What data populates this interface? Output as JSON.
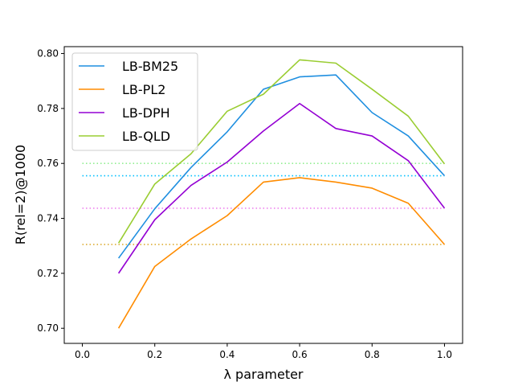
{
  "chart_data": {
    "type": "line",
    "xlabel": "λ parameter",
    "ylabel": "R(rel=2)@1000",
    "xlim": [
      -0.05,
      1.05
    ],
    "ylim": [
      0.6945,
      0.8025
    ],
    "xticks": [
      "0.0",
      "0.2",
      "0.4",
      "0.6",
      "0.8",
      "1.0"
    ],
    "yticks": [
      "0.70",
      "0.72",
      "0.74",
      "0.76",
      "0.78",
      "0.80"
    ],
    "legend_position": "top-left",
    "grid": false,
    "x": [
      0.1,
      0.2,
      0.3,
      0.4,
      0.5,
      0.6,
      0.7,
      0.8,
      0.9,
      1.0
    ],
    "series": [
      {
        "name": "LB-BM25",
        "color": "#1f8fe0",
        "values": [
          0.7255,
          0.7435,
          0.7585,
          0.7715,
          0.787,
          0.7915,
          0.7922,
          0.7785,
          0.77,
          0.7555
        ]
      },
      {
        "name": "LB-PL2",
        "color": "#ff8c00",
        "values": [
          0.7,
          0.7225,
          0.7325,
          0.741,
          0.7532,
          0.7548,
          0.7532,
          0.751,
          0.7455,
          0.7305
        ]
      },
      {
        "name": "LB-DPH",
        "color": "#9400d3",
        "values": [
          0.72,
          0.7395,
          0.752,
          0.7605,
          0.7718,
          0.7818,
          0.7727,
          0.77,
          0.761,
          0.7437
        ]
      },
      {
        "name": "LB-QLD",
        "color": "#9acd32",
        "values": [
          0.731,
          0.7525,
          0.7635,
          0.779,
          0.7852,
          0.7977,
          0.7965,
          0.787,
          0.7772,
          0.7598
        ]
      }
    ],
    "baselines": [
      {
        "value": 0.76,
        "color": "#90ee90",
        "style": "dotted"
      },
      {
        "value": 0.7555,
        "color": "#00bfff",
        "style": "dotted"
      },
      {
        "value": 0.7437,
        "color": "#ee82ee",
        "style": "dotted"
      },
      {
        "value": 0.7305,
        "color": "#daa520",
        "style": "dotted"
      }
    ],
    "baseline_x_range": [
      0.0,
      1.0
    ]
  }
}
